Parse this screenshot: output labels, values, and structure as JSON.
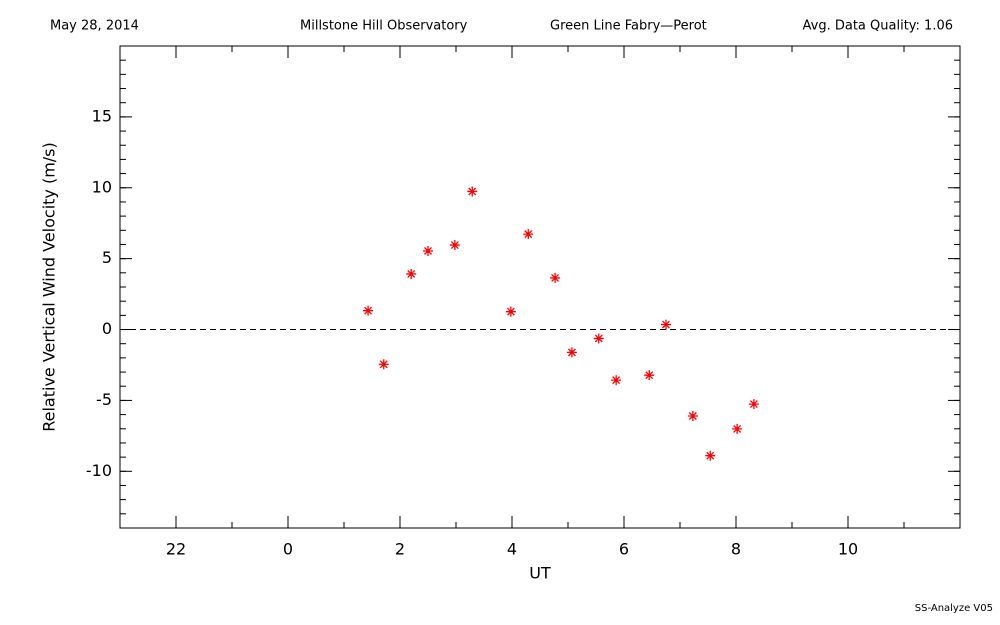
{
  "chart_data": {
    "type": "scatter",
    "header": [
      "May 28, 2014",
      "Millstone Hill Observatory",
      "Green Line Fabry—Perot",
      "Avg. Data Quality: 1.06"
    ],
    "footer": "SS-Analyze V05",
    "x_label": "UT",
    "y_label": "Relative Vertical Wind Velocity (m/s)",
    "x": [
      1.43,
      1.71,
      2.2,
      2.5,
      2.98,
      3.29,
      3.98,
      4.29,
      4.77,
      5.07,
      5.55,
      5.86,
      6.45,
      6.75,
      7.23,
      7.54,
      8.02,
      8.32
    ],
    "series": [
      {
        "color": "#ff0000",
        "values": [
          1.33,
          -2.45,
          3.92,
          5.54,
          5.96,
          9.74,
          1.26,
          6.73,
          3.64,
          -1.61,
          -0.63,
          -3.57,
          -3.22,
          0.35,
          -6.1,
          -8.9,
          -7.01,
          -5.26
        ]
      }
    ],
    "xlim": [
      -3,
      12
    ],
    "xticks": [
      {
        "value": -2,
        "label": "22"
      },
      0,
      2,
      4,
      6,
      8,
      10
    ],
    "ylim": [
      -14,
      20
    ],
    "yticks": [
      -10,
      -5,
      0,
      5,
      10,
      15
    ],
    "hline": 0
  }
}
